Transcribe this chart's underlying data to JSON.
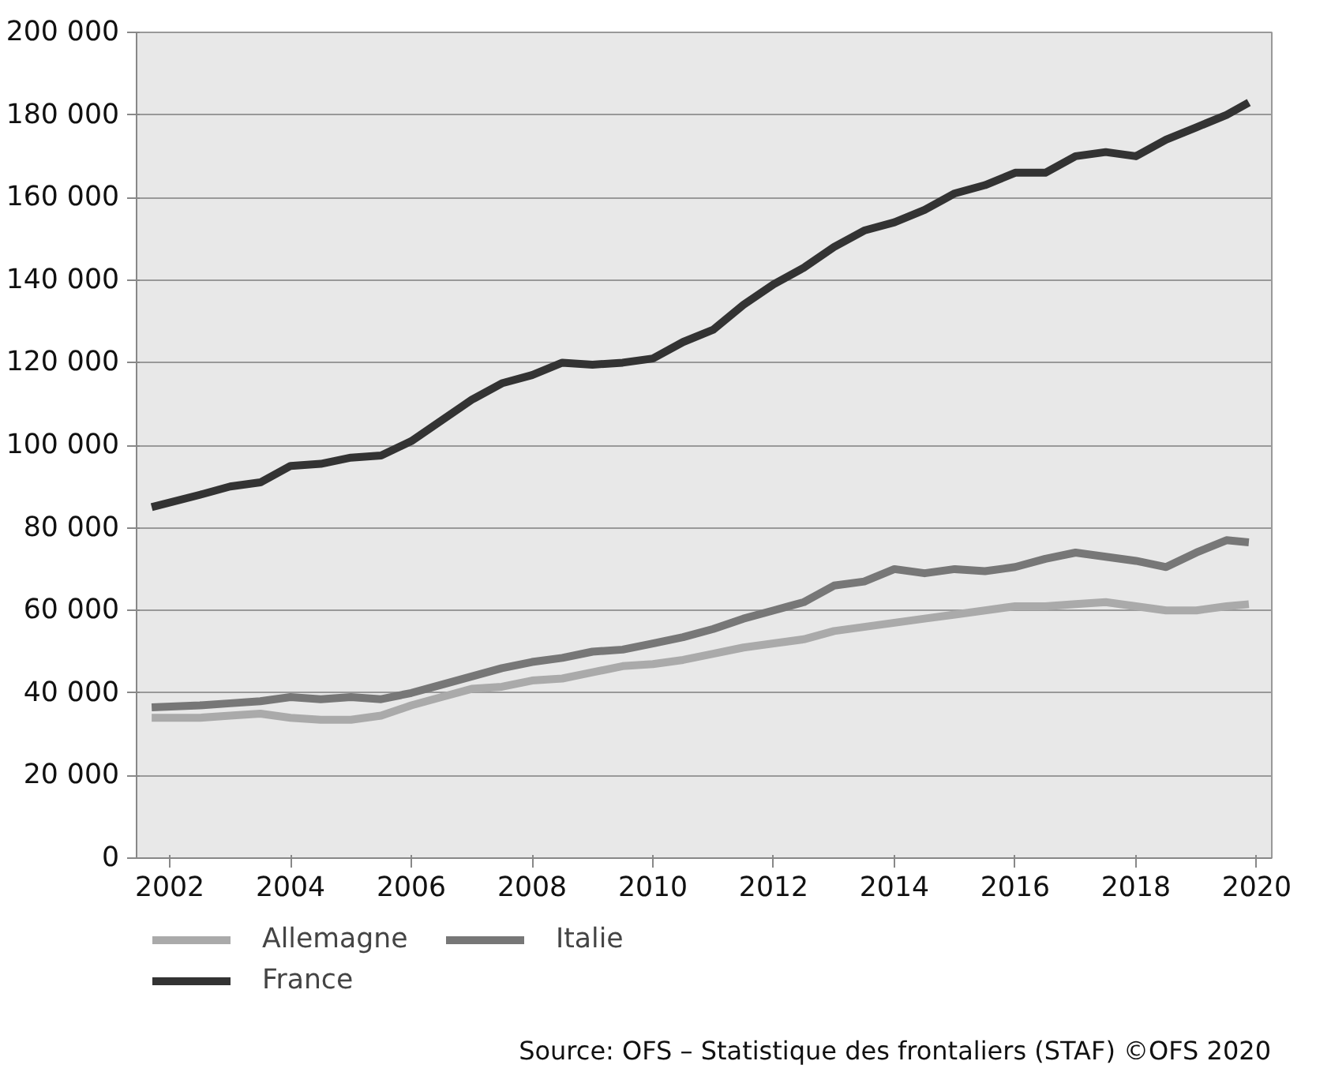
{
  "chart_data": {
    "type": "line",
    "x": [
      2001.7,
      2002.5,
      2003,
      2003.5,
      2004,
      2004.5,
      2005,
      2005.5,
      2006,
      2006.5,
      2007,
      2007.5,
      2008,
      2008.5,
      2009,
      2009.5,
      2010,
      2010.5,
      2011,
      2011.5,
      2012,
      2012.5,
      2013,
      2013.5,
      2014,
      2014.5,
      2015,
      2015.5,
      2016,
      2016.5,
      2017,
      2017.5,
      2018,
      2018.5,
      2019,
      2019.5,
      2019.87
    ],
    "series": [
      {
        "name": "Allemagne",
        "color": "#aaaaaa",
        "values": [
          34000,
          34000,
          34500,
          35000,
          34000,
          33500,
          33500,
          34500,
          37000,
          39000,
          41000,
          41500,
          43000,
          43500,
          45000,
          46500,
          47000,
          48000,
          49500,
          51000,
          52000,
          53000,
          55000,
          56000,
          57000,
          58000,
          59000,
          60000,
          61000,
          61000,
          61500,
          62000,
          61000,
          60000,
          60000,
          61000,
          61500
        ]
      },
      {
        "name": "Italie",
        "color": "#777777",
        "values": [
          36500,
          37000,
          37500,
          38000,
          39000,
          38500,
          39000,
          38500,
          40000,
          42000,
          44000,
          46000,
          47500,
          48500,
          50000,
          50500,
          52000,
          53500,
          55500,
          58000,
          60000,
          62000,
          66000,
          67000,
          70000,
          69000,
          70000,
          69500,
          70500,
          72500,
          74000,
          73000,
          72000,
          70500,
          74000,
          77000,
          76500
        ]
      },
      {
        "name": "France",
        "color": "#333333",
        "values": [
          85000,
          88000,
          90000,
          91000,
          95000,
          95500,
          97000,
          97500,
          101000,
          106000,
          111000,
          115000,
          117000,
          120000,
          119500,
          120000,
          121000,
          125000,
          128000,
          134000,
          139000,
          143000,
          148000,
          152000,
          154000,
          157000,
          161000,
          163000,
          166000,
          166000,
          170000,
          171000,
          170000,
          174000,
          177000,
          180000,
          183000
        ]
      }
    ],
    "xlim": [
      2001.45,
      2020.25
    ],
    "xticks": [
      2002,
      2004,
      2006,
      2008,
      2010,
      2012,
      2014,
      2016,
      2018,
      2020
    ],
    "ylim": [
      0,
      200000
    ],
    "yticks": [
      {
        "value": 0,
        "label": "0"
      },
      {
        "value": 20000,
        "label": "20 000"
      },
      {
        "value": 40000,
        "label": "40 000"
      },
      {
        "value": 60000,
        "label": "60 000"
      },
      {
        "value": 80000,
        "label": "80 000"
      },
      {
        "value": 100000,
        "label": "100 000"
      },
      {
        "value": 120000,
        "label": "120 000"
      },
      {
        "value": 140000,
        "label": "140 000"
      },
      {
        "value": 160000,
        "label": "160 000"
      },
      {
        "value": 180000,
        "label": "180 000"
      },
      {
        "value": 200000,
        "label": "200 000"
      }
    ],
    "grid": "y",
    "legend": "bottom",
    "marker": "none",
    "line_style": "solid",
    "annotations": [
      "Source: OFS – Statistique des frontaliers (STAF) ©OFS 2020"
    ]
  }
}
